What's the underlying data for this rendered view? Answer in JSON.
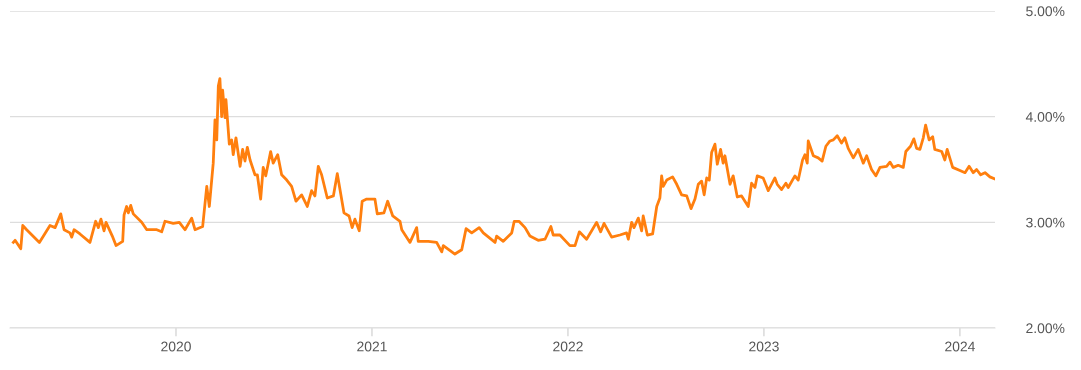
{
  "chart_data": {
    "type": "line",
    "grid": "y",
    "marker": "none",
    "line_style": "solid",
    "xlim": [
      2019.153,
      2024.179
    ],
    "xticks": [
      2020,
      2021,
      2022,
      2023,
      2024
    ],
    "ylim": [
      2,
      5
    ],
    "yticks": [
      {
        "value": 2,
        "label": "2.00%"
      },
      {
        "value": 3,
        "label": "3.00%"
      },
      {
        "value": 4,
        "label": "4.00%"
      },
      {
        "value": 5,
        "label": "5.00%"
      }
    ],
    "series": [
      {
        "color": "#ff7f0e",
        "x": [
          2019.17,
          2019.179,
          2019.208,
          2019.218,
          2019.238,
          2019.303,
          2019.357,
          2019.383,
          2019.412,
          2019.429,
          2019.459,
          2019.468,
          2019.48,
          2019.51,
          2019.561,
          2019.59,
          2019.604,
          2019.617,
          2019.633,
          2019.643,
          2019.675,
          2019.694,
          2019.728,
          2019.735,
          2019.748,
          2019.757,
          2019.769,
          2019.782,
          2019.825,
          2019.851,
          2019.902,
          2019.927,
          2019.944,
          2019.986,
          2020.017,
          2020.046,
          2020.08,
          2020.097,
          2020.136,
          2020.157,
          2020.17,
          2020.19,
          2020.199,
          2020.208,
          2020.216,
          2020.224,
          2020.233,
          2020.238,
          2020.25,
          2020.255,
          2020.272,
          2020.284,
          2020.292,
          2020.306,
          2020.327,
          2020.34,
          2020.352,
          2020.364,
          2020.378,
          2020.403,
          2020.415,
          2020.432,
          2020.445,
          2020.458,
          2020.483,
          2020.496,
          2020.519,
          2020.539,
          2020.565,
          2020.59,
          2020.612,
          2020.641,
          2020.67,
          2020.692,
          2020.709,
          2020.726,
          2020.743,
          2020.772,
          2020.803,
          2020.823,
          2020.857,
          2020.883,
          2020.899,
          2020.913,
          2020.935,
          2020.95,
          2020.973,
          2021.015,
          2021.027,
          2021.061,
          2021.08,
          2021.106,
          2021.143,
          2021.152,
          2021.194,
          2021.228,
          2021.236,
          2021.287,
          2021.33,
          2021.356,
          2021.364,
          2021.423,
          2021.458,
          2021.48,
          2021.509,
          2021.547,
          2021.568,
          2021.628,
          2021.636,
          2021.67,
          2021.713,
          2021.726,
          2021.75,
          2021.781,
          2021.806,
          2021.848,
          2021.883,
          2021.913,
          2021.925,
          2021.959,
          2022.01,
          2022.036,
          2022.058,
          2022.095,
          2022.121,
          2022.146,
          2022.167,
          2022.184,
          2022.223,
          2022.265,
          2022.299,
          2022.308,
          2022.325,
          2022.337,
          2022.359,
          2022.376,
          2022.384,
          2022.405,
          2022.432,
          2022.453,
          2022.469,
          2022.478,
          2022.486,
          2022.504,
          2022.534,
          2022.555,
          2022.58,
          2022.606,
          2022.628,
          2022.648,
          2022.665,
          2022.682,
          2022.695,
          2022.708,
          2022.721,
          2022.733,
          2022.75,
          2022.762,
          2022.779,
          2022.792,
          2022.801,
          2022.827,
          2022.843,
          2022.864,
          2022.886,
          2022.92,
          2022.937,
          2022.954,
          2022.966,
          2022.996,
          2023.022,
          2023.056,
          2023.068,
          2023.09,
          2023.112,
          2023.124,
          2023.158,
          2023.175,
          2023.197,
          2023.209,
          2023.221,
          2023.226,
          2023.252,
          2023.277,
          2023.297,
          2023.316,
          2023.337,
          2023.354,
          2023.374,
          2023.396,
          2023.413,
          2023.43,
          2023.456,
          2023.481,
          2023.507,
          2023.524,
          2023.549,
          2023.571,
          2023.592,
          2023.626,
          2023.643,
          2023.66,
          2023.685,
          2023.711,
          2023.724,
          2023.748,
          2023.765,
          2023.779,
          2023.796,
          2023.813,
          2023.825,
          2023.843,
          2023.861,
          2023.872,
          2023.907,
          2023.923,
          2023.935,
          2023.963,
          2024.0,
          2024.026,
          2024.047,
          2024.068,
          2024.085,
          2024.106,
          2024.128,
          2024.153,
          2024.179
        ],
        "values": [
          2.81,
          2.83,
          2.75,
          2.97,
          2.93,
          2.81,
          2.97,
          2.95,
          3.08,
          2.93,
          2.9,
          2.86,
          2.93,
          2.89,
          2.81,
          3.01,
          2.95,
          3.03,
          2.92,
          3.0,
          2.87,
          2.78,
          2.82,
          3.07,
          3.15,
          3.09,
          3.16,
          3.08,
          3.0,
          2.93,
          2.93,
          2.91,
          3.01,
          2.99,
          3.0,
          2.93,
          3.04,
          2.93,
          2.96,
          3.34,
          3.15,
          3.56,
          3.97,
          3.78,
          4.29,
          4.36,
          4.0,
          4.25,
          3.99,
          4.16,
          3.74,
          3.78,
          3.64,
          3.8,
          3.53,
          3.69,
          3.58,
          3.71,
          3.59,
          3.45,
          3.45,
          3.22,
          3.52,
          3.44,
          3.67,
          3.56,
          3.64,
          3.45,
          3.4,
          3.34,
          3.2,
          3.26,
          3.15,
          3.3,
          3.25,
          3.53,
          3.45,
          3.23,
          3.25,
          3.46,
          3.09,
          3.06,
          2.95,
          3.03,
          2.92,
          3.2,
          3.22,
          3.22,
          3.08,
          3.09,
          3.2,
          3.06,
          3.01,
          2.93,
          2.81,
          2.95,
          2.82,
          2.82,
          2.81,
          2.72,
          2.78,
          2.7,
          2.74,
          2.94,
          2.9,
          2.95,
          2.9,
          2.81,
          2.87,
          2.82,
          2.9,
          3.01,
          3.01,
          2.95,
          2.87,
          2.83,
          2.84,
          2.96,
          2.88,
          2.88,
          2.78,
          2.78,
          2.91,
          2.84,
          2.92,
          3.0,
          2.91,
          2.99,
          2.86,
          2.88,
          2.9,
          2.84,
          3.0,
          2.95,
          3.04,
          2.92,
          3.06,
          2.88,
          2.89,
          3.15,
          3.23,
          3.44,
          3.34,
          3.4,
          3.43,
          3.36,
          3.26,
          3.25,
          3.13,
          3.22,
          3.36,
          3.39,
          3.26,
          3.42,
          3.4,
          3.66,
          3.74,
          3.55,
          3.69,
          3.56,
          3.63,
          3.36,
          3.44,
          3.24,
          3.25,
          3.15,
          3.37,
          3.33,
          3.44,
          3.42,
          3.3,
          3.42,
          3.36,
          3.31,
          3.37,
          3.33,
          3.44,
          3.4,
          3.59,
          3.64,
          3.56,
          3.77,
          3.63,
          3.61,
          3.58,
          3.72,
          3.77,
          3.78,
          3.82,
          3.75,
          3.8,
          3.7,
          3.61,
          3.69,
          3.56,
          3.63,
          3.5,
          3.44,
          3.52,
          3.53,
          3.57,
          3.52,
          3.54,
          3.52,
          3.67,
          3.72,
          3.79,
          3.7,
          3.69,
          3.8,
          3.92,
          3.78,
          3.81,
          3.69,
          3.67,
          3.59,
          3.69,
          3.52,
          3.49,
          3.47,
          3.53,
          3.47,
          3.5,
          3.45,
          3.47,
          3.43,
          3.41
        ]
      }
    ]
  }
}
